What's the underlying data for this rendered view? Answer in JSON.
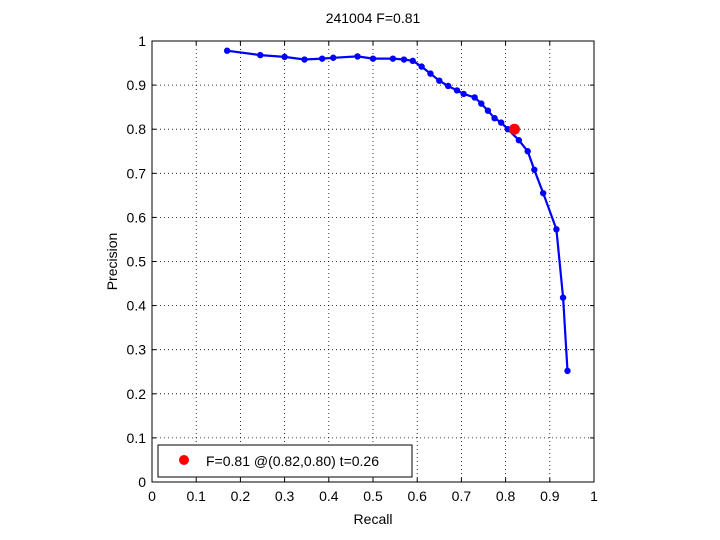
{
  "chart_data": {
    "type": "line",
    "title": "241004 F=0.81",
    "xlabel": "Recall",
    "ylabel": "Precision",
    "xlim": [
      0,
      1
    ],
    "ylim": [
      0,
      1
    ],
    "xticks": [
      "0",
      "0.1",
      "0.2",
      "0.3",
      "0.4",
      "0.5",
      "0.6",
      "0.7",
      "0.8",
      "0.9",
      "1"
    ],
    "yticks": [
      "0",
      "0.1",
      "0.2",
      "0.3",
      "0.4",
      "0.5",
      "0.6",
      "0.7",
      "0.8",
      "0.9",
      "1"
    ],
    "grid": true,
    "legend_position": "bottom-left",
    "series": [
      {
        "color": "#0000ff",
        "x": [
          0.17,
          0.245,
          0.3,
          0.345,
          0.385,
          0.41,
          0.465,
          0.5,
          0.545,
          0.57,
          0.59,
          0.61,
          0.63,
          0.65,
          0.67,
          0.69,
          0.705,
          0.73,
          0.745,
          0.76,
          0.775,
          0.79,
          0.805,
          0.83,
          0.85,
          0.865,
          0.885,
          0.915,
          0.93,
          0.94
        ],
        "y": [
          0.978,
          0.968,
          0.964,
          0.958,
          0.96,
          0.962,
          0.965,
          0.96,
          0.96,
          0.958,
          0.955,
          0.942,
          0.926,
          0.91,
          0.898,
          0.888,
          0.88,
          0.872,
          0.858,
          0.842,
          0.825,
          0.815,
          0.8,
          0.775,
          0.75,
          0.708,
          0.655,
          0.573,
          0.418,
          0.252
        ]
      }
    ],
    "highlight": {
      "x": 0.82,
      "y": 0.8,
      "color": "#ff0000"
    },
    "legend": {
      "label": "F=0.81 @(0.82,0.80) t=0.26"
    }
  }
}
